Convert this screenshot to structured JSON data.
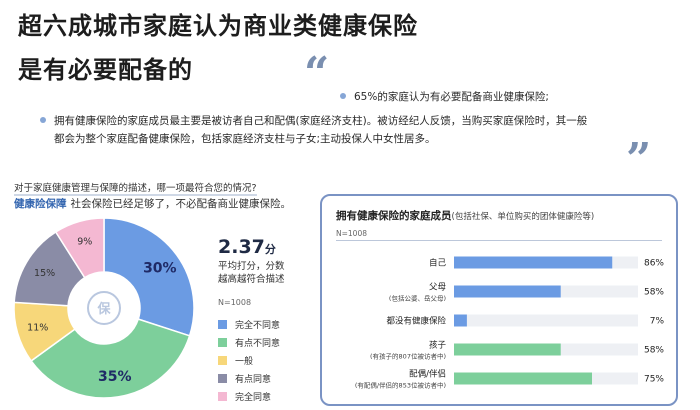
{
  "header": {
    "title_line1": "超六成城市家庭认为商业类健康保险",
    "title_line2": "是有必要配备的"
  },
  "bullets": [
    "65%的家庭认为有必要配备商业健康保险;",
    "拥有健康保险的家庭成员最主要是被访者自己和配偶(家庭经济支柱)。被访经纪人反馈，当购买家庭保险时，其一般",
    "都会为整个家庭配备健康保险，包括家庭经济支柱与子女;主动投保人中女性居多。"
  ],
  "left": {
    "question": "对于家庭健康管理与保障的描述，哪一项最符合您的情况?",
    "sub_bold": "健康险保障",
    "sub_text": "社会保险已经足够了，不必配备商业健康保险。",
    "pie_icon_label": "保",
    "score_value": "2.37",
    "score_unit": "分",
    "score_desc1": "平均打分，分数",
    "score_desc2": "越高越符合描述",
    "sample": "N=1008"
  },
  "right": {
    "title": "拥有健康保险的家庭成员",
    "title_note": "(包括社保、单位购买的团体健康险等)",
    "sample": "N=1008"
  },
  "chart_data": [
    {
      "type": "pie",
      "title": "健康险保障",
      "categories": [
        "完全不同意",
        "有点不同意",
        "一般",
        "有点同意",
        "完全同意"
      ],
      "values": [
        30,
        35,
        11,
        15,
        9
      ],
      "labels": [
        "30%",
        "35%",
        "11%",
        "15%",
        "9%"
      ],
      "colors": [
        "#6b9be3",
        "#7dcf9b",
        "#f7d77a",
        "#8a8ca6",
        "#f4b8d2"
      ],
      "legend_position": "right"
    },
    {
      "type": "bar",
      "orientation": "horizontal",
      "title": "拥有健康保险的家庭成员",
      "categories": [
        "自己",
        "父母",
        "都没有健康保险",
        "孩子",
        "配偶/伴侣"
      ],
      "category_notes": [
        "",
        "(包括公婆、岳父母)",
        "",
        "(有孩子的807位被访者中)",
        "(有配偶/伴侣的853位被访者中)"
      ],
      "values": [
        86,
        58,
        7,
        58,
        75
      ],
      "labels": [
        "86%",
        "58%",
        "7%",
        "58%",
        "75%"
      ],
      "colors": [
        "#6b9be3",
        "#6b9be3",
        "#6b9be3",
        "#7dcf9b",
        "#7dcf9b"
      ],
      "xlim": [
        0,
        100
      ]
    }
  ]
}
